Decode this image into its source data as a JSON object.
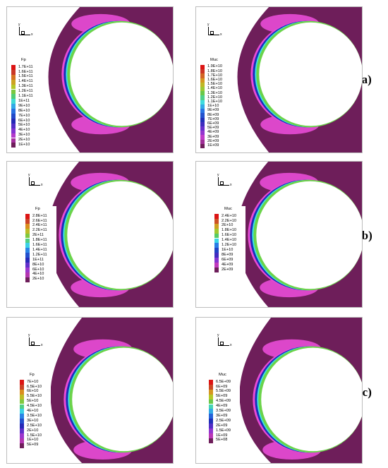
{
  "panels": [
    {
      "title": "Fp",
      "values": [
        "1.7E+11",
        "1.6E+11",
        "1.5E+11",
        "1.4E+11",
        "1.3E+11",
        "1.2E+11",
        "1.1E+11",
        "1E+11",
        "9E+10",
        "8E+10",
        "7E+10",
        "6E+10",
        "5E+10",
        "4E+10",
        "3E+10",
        "2E+10",
        "1E+10"
      ],
      "axis": {
        "y": "y",
        "x": "x"
      }
    },
    {
      "title": "Muc",
      "values": [
        "1.9E+10",
        "1.8E+10",
        "1.7E+10",
        "1.6E+10",
        "1.5E+10",
        "1.4E+10",
        "1.3E+10",
        "1.2E+10",
        "1.1E+10",
        "1E+10",
        "9E+09",
        "8E+09",
        "7E+09",
        "6E+09",
        "5E+09",
        "4E+09",
        "3E+09",
        "2E+09",
        "1E+09"
      ],
      "axis": {
        "y": "y",
        "x": "x"
      }
    },
    {
      "title": "Fp",
      "values": [
        "2.8E+11",
        "2.6E+11",
        "2.4E+11",
        "2.2E+11",
        "2E+11",
        "1.8E+11",
        "1.6E+11",
        "1.4E+11",
        "1.2E+11",
        "1E+11",
        "8E+10",
        "6E+10",
        "4E+10",
        "2E+10"
      ],
      "axis": {
        "y": "y",
        "x": "x"
      }
    },
    {
      "title": "Muc",
      "values": [
        "2.4E+10",
        "2.2E+10",
        "2E+10",
        "1.8E+10",
        "1.6E+10",
        "1.4E+10",
        "1.2E+10",
        "1E+10",
        "8E+09",
        "6E+09",
        "4E+09",
        "2E+09"
      ],
      "axis": {
        "y": "y",
        "x": "x"
      }
    },
    {
      "title": "Fp",
      "values": [
        "7E+10",
        "6.5E+10",
        "6E+10",
        "5.5E+10",
        "5E+10",
        "4.5E+10",
        "4E+10",
        "3.5E+10",
        "3E+10",
        "2.5E+10",
        "2E+10",
        "1.5E+10",
        "1E+10",
        "5E+09"
      ],
      "axis": {
        "y": "y",
        "x": "x"
      }
    },
    {
      "title": "Muc",
      "values": [
        "6.5E+09",
        "6E+09",
        "5.5E+09",
        "5E+09",
        "4.5E+09",
        "4E+09",
        "3.5E+09",
        "3E+09",
        "2.5E+09",
        "2E+09",
        "1.5E+09",
        "1E+09",
        "5E+08"
      ],
      "axis": {
        "y": "y",
        "x": "x"
      }
    }
  ],
  "row_labels": [
    "(a)",
    "(b)",
    "(c)"
  ],
  "colors": {
    "field": "#6e1e5a",
    "circle": "#ffffff",
    "magenta": "#e84bd6",
    "blue": "#1a2fb8",
    "cyan": "#39e6e6",
    "green": "#6bd34a"
  }
}
